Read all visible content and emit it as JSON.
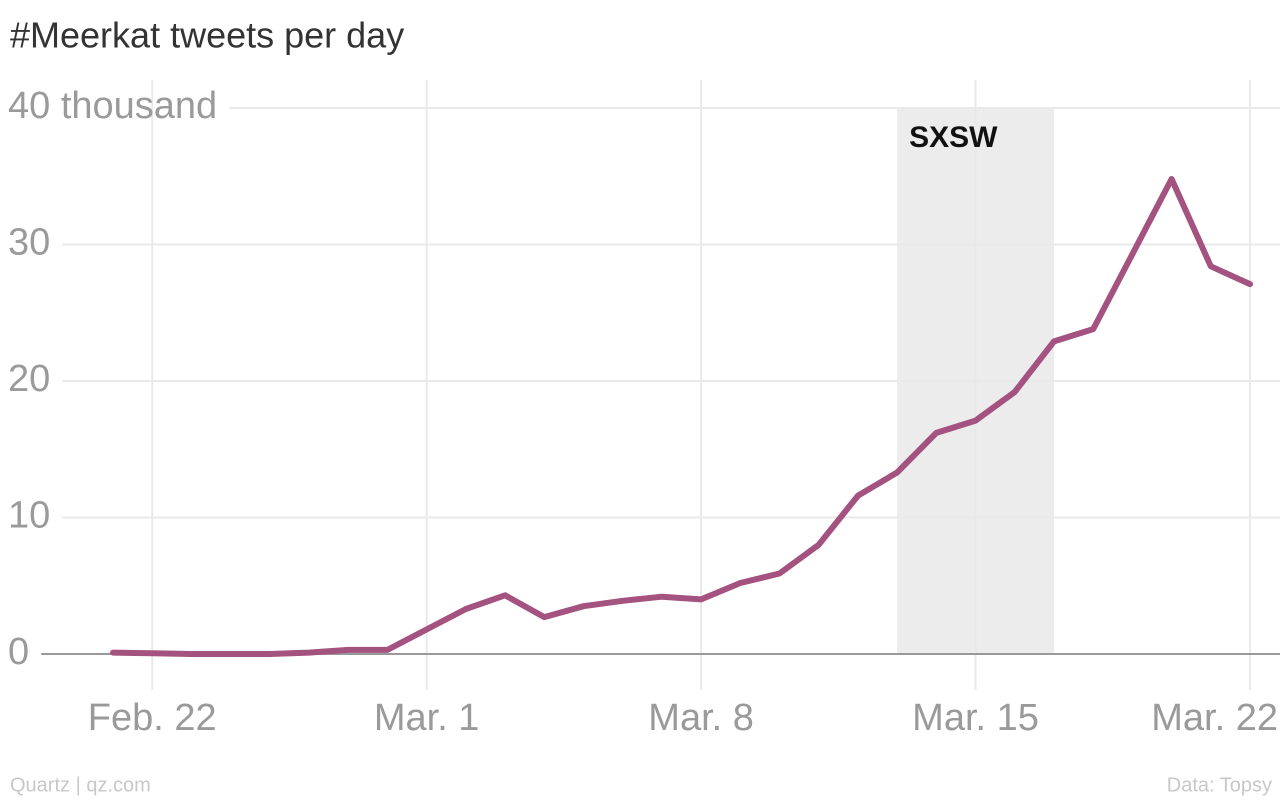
{
  "chart_data": {
    "type": "line",
    "title": "#Meerkat tweets per day",
    "x": [
      "Feb. 21",
      "Feb. 22",
      "Feb. 23",
      "Feb. 24",
      "Feb. 25",
      "Feb. 26",
      "Feb. 27",
      "Feb. 28",
      "Mar. 1",
      "Mar. 2",
      "Mar. 3",
      "Mar. 4",
      "Mar. 5",
      "Mar. 6",
      "Mar. 7",
      "Mar. 8",
      "Mar. 9",
      "Mar. 10",
      "Mar. 11",
      "Mar. 12",
      "Mar. 13",
      "Mar. 14",
      "Mar. 15",
      "Mar. 16",
      "Mar. 17",
      "Mar. 18",
      "Mar. 19",
      "Mar. 20",
      "Mar. 21",
      "Mar. 22"
    ],
    "values": [
      0.1,
      0.05,
      0,
      0,
      0,
      0.1,
      0.3,
      0.3,
      1.8,
      3.3,
      4.3,
      2.7,
      3.5,
      3.9,
      4.2,
      4.0,
      5.2,
      5.9,
      8.0,
      11.6,
      13.3,
      16.2,
      17.1,
      19.2,
      22.9,
      23.8,
      29.3,
      34.8,
      28.4,
      27.1
    ],
    "color": "#a4527f",
    "ylim": [
      0,
      40
    ],
    "yticks": [
      0,
      10,
      20,
      30,
      {
        "value": 40,
        "label": "40 thousand"
      }
    ],
    "xticks": [
      "Feb. 22",
      "Mar. 1",
      "Mar. 8",
      "Mar. 15",
      "Mar. 22"
    ],
    "grid": true,
    "annotation": {
      "text": "SXSW",
      "x_start": "Mar. 13",
      "x_end": "Mar. 17"
    },
    "source_left": "Quartz | qz.com",
    "source_right": "Data: Topsy"
  }
}
